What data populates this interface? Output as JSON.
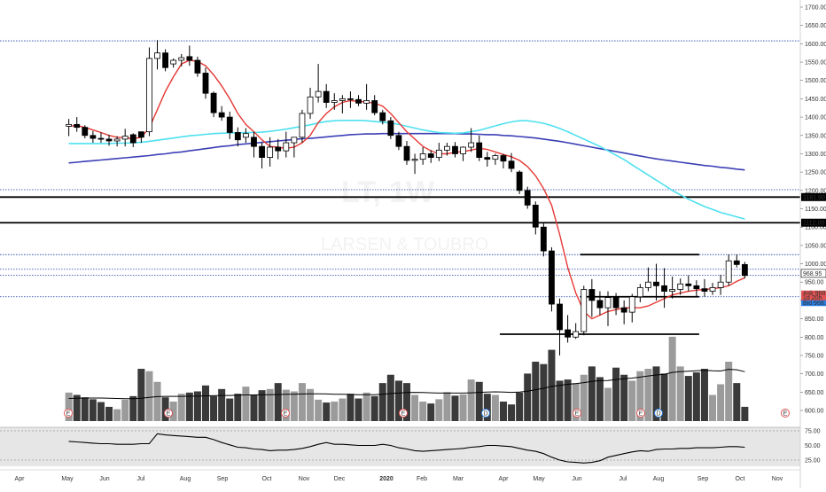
{
  "chart_data": {
    "type": "candlestick",
    "title": "",
    "symbol": "LT, 1W",
    "company": "LARSEN & TOUBRO",
    "price_axis": {
      "ticks": [
        1700,
        1650,
        1600,
        1550,
        1500,
        1450,
        1400,
        1350,
        1300,
        1250,
        1200,
        1150,
        1100,
        1050,
        1000,
        950,
        900,
        850,
        800,
        750,
        700,
        650,
        600
      ],
      "labels": [
        "1700.00",
        "1650.00",
        "1600.00",
        "1550.00",
        "1500.00",
        "1450.00",
        "1400.00",
        "1350.00",
        "1300.00",
        "1250.00",
        "1200.00",
        "1150.00",
        "1100.00",
        "1050.00",
        "1000.00",
        "950.00",
        "900.00",
        "850.00",
        "800.00",
        "750.00",
        "700.00",
        "650.00",
        "600.00"
      ],
      "ylim": [
        578,
        1722
      ]
    },
    "oscillator_axis": {
      "ticks": [
        75,
        50,
        25
      ],
      "labels": [
        "75.00",
        "50.00",
        "25.00"
      ],
      "ylim": [
        15,
        85
      ]
    },
    "x_labels": [
      "Apr",
      "May",
      "Jun",
      "Jul",
      "Aug",
      "Sep",
      "Oct",
      "Nov",
      "Dec",
      "2020",
      "Feb",
      "Mar",
      "Apr",
      "May",
      "Jun",
      "Jul",
      "Aug",
      "Sep",
      "Oct",
      "Nov"
    ],
    "price_labels": [
      {
        "text": "1181.90",
        "value": 1181.9
      },
      {
        "text": "1112.00",
        "value": 1112.0
      },
      {
        "text": "968.95",
        "value": 968.95
      }
    ],
    "quote_labels": {
      "ask": "Ask 968.99",
      "countdown": "1d 20h",
      "bid": "Bid 968.95"
    },
    "horizontal_lines": [
      {
        "value": 1181.9,
        "style": "solid",
        "color": "#000000"
      },
      {
        "value": 1112.0,
        "style": "solid",
        "color": "#000000"
      },
      {
        "value": 1608,
        "style": "dotted",
        "color": "#1e3fa8"
      },
      {
        "value": 1202,
        "style": "dotted",
        "color": "#1e3fa8"
      },
      {
        "value": 1025,
        "style": "dotted",
        "color": "#1e3fa8"
      },
      {
        "value": 985,
        "style": "dotted",
        "color": "#1e3fa8"
      },
      {
        "value": 968.95,
        "style": "dotted",
        "color": "#1e3fa8"
      },
      {
        "value": 910,
        "style": "dotted",
        "color": "#1e3fa8"
      }
    ],
    "trend_segments": [
      {
        "x0": 114,
        "x1": 125,
        "value": 1025
      },
      {
        "x0": 114,
        "x1": 120,
        "value": 910
      },
      {
        "x0": 100,
        "x1": 125,
        "value": 808
      }
    ],
    "candles": [
      [
        1375,
        1395,
        1348,
        1380
      ],
      [
        1380,
        1400,
        1360,
        1372
      ],
      [
        1372,
        1378,
        1342,
        1350
      ],
      [
        1350,
        1362,
        1330,
        1342
      ],
      [
        1342,
        1358,
        1330,
        1340
      ],
      [
        1340,
        1352,
        1322,
        1335
      ],
      [
        1335,
        1348,
        1320,
        1340
      ],
      [
        1340,
        1368,
        1320,
        1348
      ],
      [
        1352,
        1356,
        1318,
        1330
      ],
      [
        1360,
        1358,
        1330,
        1345
      ],
      [
        1360,
        1590,
        1348,
        1560
      ],
      [
        1560,
        1610,
        1530,
        1575
      ],
      [
        1575,
        1585,
        1525,
        1535
      ],
      [
        1545,
        1560,
        1535,
        1555
      ],
      [
        1555,
        1572,
        1538,
        1562
      ],
      [
        1565,
        1595,
        1540,
        1555
      ],
      [
        1555,
        1565,
        1510,
        1520
      ],
      [
        1520,
        1535,
        1450,
        1465
      ],
      [
        1465,
        1470,
        1400,
        1412
      ],
      [
        1412,
        1430,
        1390,
        1400
      ],
      [
        1400,
        1415,
        1340,
        1358
      ],
      [
        1358,
        1372,
        1320,
        1338
      ],
      [
        1345,
        1370,
        1330,
        1355
      ],
      [
        1345,
        1360,
        1290,
        1320
      ],
      [
        1320,
        1330,
        1260,
        1290
      ],
      [
        1290,
        1345,
        1265,
        1318
      ],
      [
        1318,
        1340,
        1285,
        1308
      ],
      [
        1308,
        1360,
        1290,
        1330
      ],
      [
        1330,
        1345,
        1290,
        1345
      ],
      [
        1345,
        1420,
        1330,
        1410
      ],
      [
        1410,
        1480,
        1395,
        1455
      ],
      [
        1455,
        1545,
        1440,
        1470
      ],
      [
        1470,
        1490,
        1425,
        1440
      ],
      [
        1440,
        1465,
        1420,
        1445
      ],
      [
        1445,
        1460,
        1410,
        1450
      ],
      [
        1450,
        1470,
        1425,
        1448
      ],
      [
        1448,
        1460,
        1430,
        1438
      ],
      [
        1438,
        1490,
        1420,
        1445
      ],
      [
        1445,
        1460,
        1405,
        1412
      ],
      [
        1412,
        1420,
        1380,
        1390
      ],
      [
        1390,
        1400,
        1340,
        1350
      ],
      [
        1350,
        1360,
        1310,
        1320
      ],
      [
        1320,
        1335,
        1270,
        1282
      ],
      [
        1282,
        1300,
        1245,
        1285
      ],
      [
        1285,
        1318,
        1270,
        1300
      ],
      [
        1300,
        1310,
        1275,
        1290
      ],
      [
        1290,
        1330,
        1280,
        1310
      ],
      [
        1310,
        1330,
        1295,
        1320
      ],
      [
        1320,
        1332,
        1290,
        1300
      ],
      [
        1300,
        1320,
        1280,
        1318
      ],
      [
        1318,
        1370,
        1305,
        1330
      ],
      [
        1330,
        1350,
        1280,
        1290
      ],
      [
        1290,
        1305,
        1265,
        1285
      ],
      [
        1285,
        1300,
        1270,
        1295
      ],
      [
        1295,
        1300,
        1260,
        1280
      ],
      [
        1280,
        1302,
        1250,
        1260
      ],
      [
        1250,
        1255,
        1190,
        1200
      ],
      [
        1200,
        1210,
        1150,
        1160
      ],
      [
        1160,
        1170,
        1080,
        1100
      ],
      [
        1100,
        1110,
        1020,
        1035
      ],
      [
        1035,
        1045,
        870,
        890
      ],
      [
        890,
        905,
        750,
        820
      ],
      [
        820,
        860,
        785,
        800
      ],
      [
        800,
        838,
        795,
        815
      ],
      [
        815,
        940,
        805,
        930
      ],
      [
        930,
        958,
        855,
        900
      ],
      [
        900,
        925,
        860,
        880
      ],
      [
        880,
        925,
        830,
        908
      ],
      [
        908,
        920,
        860,
        880
      ],
      [
        880,
        900,
        835,
        868
      ],
      [
        868,
        918,
        840,
        910
      ],
      [
        910,
        945,
        895,
        935
      ],
      [
        935,
        990,
        925,
        950
      ],
      [
        950,
        1000,
        900,
        940
      ],
      [
        940,
        988,
        880,
        925
      ],
      [
        925,
        965,
        905,
        930
      ],
      [
        930,
        960,
        915,
        945
      ],
      [
        945,
        968,
        925,
        940
      ],
      [
        940,
        955,
        910,
        932
      ],
      [
        932,
        958,
        910,
        925
      ],
      [
        925,
        948,
        915,
        935
      ],
      [
        935,
        970,
        915,
        950
      ],
      [
        950,
        1025,
        940,
        1008
      ],
      [
        1008,
        1025,
        990,
        998
      ],
      [
        998,
        1005,
        960,
        968
      ]
    ],
    "volume": [
      120,
      110,
      100,
      92,
      80,
      60,
      50,
      90,
      105,
      220,
      210,
      165,
      100,
      82,
      115,
      120,
      125,
      150,
      105,
      135,
      95,
      115,
      145,
      112,
      130,
      135,
      160,
      132,
      125,
      160,
      135,
      90,
      78,
      82,
      95,
      115,
      95,
      120,
      105,
      160,
      195,
      170,
      160,
      110,
      82,
      74,
      92,
      122,
      107,
      112,
      175,
      165,
      115,
      110,
      82,
      70,
      120,
      200,
      250,
      240,
      300,
      170,
      175,
      160,
      195,
      230,
      185,
      140,
      225,
      195,
      170,
      210,
      220,
      230,
      200,
      355,
      230,
      190,
      205,
      220,
      110,
      155,
      250,
      160,
      60
    ],
    "volume_ma": [
      95,
      96,
      97,
      97,
      97,
      96,
      95,
      94,
      94,
      96,
      100,
      103,
      104,
      104,
      104,
      105,
      105,
      106,
      107,
      108,
      108,
      109,
      110,
      110,
      111,
      111,
      112,
      113,
      113,
      114,
      115,
      115,
      114,
      113,
      113,
      112,
      111,
      111,
      111,
      113,
      116,
      118,
      120,
      121,
      120,
      119,
      118,
      118,
      118,
      118,
      119,
      121,
      122,
      123,
      122,
      121,
      122,
      126,
      132,
      138,
      146,
      150,
      155,
      158,
      162,
      167,
      170,
      171,
      175,
      178,
      181,
      185,
      190,
      194,
      197,
      205,
      208,
      210,
      212,
      214,
      212,
      211,
      218,
      216,
      208
    ],
    "sma_fast": [
      1375,
      1377,
      1372,
      1365,
      1358,
      1350,
      1345,
      1344,
      1341,
      1345,
      1370,
      1420,
      1470,
      1510,
      1545,
      1555,
      1552,
      1540,
      1515,
      1485,
      1450,
      1410,
      1380,
      1360,
      1338,
      1320,
      1318,
      1315,
      1318,
      1330,
      1350,
      1385,
      1410,
      1428,
      1440,
      1445,
      1443,
      1441,
      1438,
      1430,
      1410,
      1385,
      1360,
      1340,
      1320,
      1308,
      1300,
      1300,
      1304,
      1306,
      1310,
      1315,
      1312,
      1305,
      1298,
      1292,
      1282,
      1265,
      1240,
      1205,
      1160,
      1080,
      990,
      920,
      870,
      850,
      860,
      870,
      875,
      880,
      880,
      880,
      885,
      895,
      905,
      915,
      920,
      925,
      928,
      930,
      932,
      935,
      940,
      952,
      962
    ],
    "sma_mid": [
      1328,
      1328,
      1328,
      1328,
      1328,
      1328,
      1329,
      1329,
      1330,
      1331,
      1334,
      1337,
      1340,
      1343,
      1346,
      1349,
      1351,
      1353,
      1355,
      1356,
      1357,
      1357,
      1358,
      1358,
      1359,
      1361,
      1364,
      1367,
      1371,
      1375,
      1379,
      1384,
      1388,
      1390,
      1391,
      1391,
      1391,
      1390,
      1388,
      1386,
      1384,
      1380,
      1375,
      1370,
      1365,
      1361,
      1358,
      1357,
      1356,
      1357,
      1360,
      1364,
      1370,
      1376,
      1382,
      1387,
      1390,
      1390,
      1387,
      1383,
      1377,
      1369,
      1360,
      1350,
      1340,
      1330,
      1320,
      1308,
      1296,
      1284,
      1270,
      1256,
      1242,
      1228,
      1214,
      1200,
      1188,
      1176,
      1166,
      1156,
      1148,
      1140,
      1134,
      1128,
      1122
    ],
    "sma_slow": [
      1275,
      1277,
      1279,
      1281,
      1283,
      1285,
      1287,
      1289,
      1291,
      1293,
      1295,
      1298,
      1300,
      1303,
      1305,
      1308,
      1311,
      1314,
      1317,
      1320,
      1322,
      1325,
      1327,
      1329,
      1331,
      1333,
      1335,
      1337,
      1339,
      1341,
      1342,
      1344,
      1346,
      1348,
      1350,
      1352,
      1353,
      1354,
      1354,
      1355,
      1355,
      1355,
      1355,
      1355,
      1355,
      1355,
      1355,
      1355,
      1355,
      1354,
      1354,
      1353,
      1352,
      1352,
      1350,
      1349,
      1347,
      1345,
      1343,
      1340,
      1337,
      1334,
      1330,
      1326,
      1322,
      1318,
      1314,
      1310,
      1306,
      1302,
      1298,
      1294,
      1290,
      1286,
      1283,
      1280,
      1277,
      1274,
      1271,
      1268,
      1266,
      1263,
      1261,
      1258,
      1256
    ],
    "oscillator": [
      57,
      56,
      55,
      54,
      53,
      53,
      52,
      52,
      52,
      53,
      53,
      70,
      68,
      67,
      66,
      65,
      64,
      64,
      60,
      55,
      51,
      47,
      46,
      44,
      43,
      41,
      42,
      42,
      43,
      45,
      48,
      52,
      55,
      52,
      52,
      51,
      50,
      50,
      50,
      52,
      50,
      46,
      44,
      41,
      40,
      41,
      42,
      43,
      44,
      45,
      47,
      48,
      50,
      50,
      49,
      48,
      45,
      42,
      40,
      36,
      30,
      25,
      22,
      21,
      20,
      21,
      24,
      30,
      33,
      36,
      39,
      41,
      40,
      43,
      44,
      44,
      45,
      45,
      46,
      46,
      46,
      47,
      48,
      48,
      47
    ],
    "events": [
      {
        "label": "E",
        "color": "#e05252",
        "index": 7
      },
      {
        "label": "D",
        "color": "#2a7de1",
        "index": 22
      },
      {
        "label": "E",
        "color": "#e05252",
        "index": 22
      },
      {
        "label": "E",
        "color": "#e05252",
        "index": 38
      },
      {
        "label": "E",
        "color": "#e05252",
        "index": 54
      },
      {
        "label": "D",
        "color": "#2a7de1",
        "index": 66
      },
      {
        "label": "E",
        "color": "#e05252",
        "index": 78
      },
      {
        "label": "E",
        "color": "#e05252",
        "index": 87
      },
      {
        "label": "D",
        "color": "#2a7de1",
        "index": 89
      },
      {
        "label": "E",
        "color": "#e05252",
        "index": 107
      }
    ],
    "colors": {
      "candle_up": "#ffffff",
      "candle_down": "#000000",
      "wick": "#000000",
      "sma_fast": "#e53935",
      "sma_mid": "#4ee0f0",
      "sma_slow": "#3b3fb5",
      "volume_down": "#3a3a3a",
      "volume_up": "#9b9b9b",
      "volume_ma": "#000000",
      "oscillator": "#000000",
      "dotted_line": "#1e3fa8",
      "price_tag_last": "#ffffff",
      "ask_bg": "#e05252",
      "bid_bg": "#2a7de1"
    }
  }
}
